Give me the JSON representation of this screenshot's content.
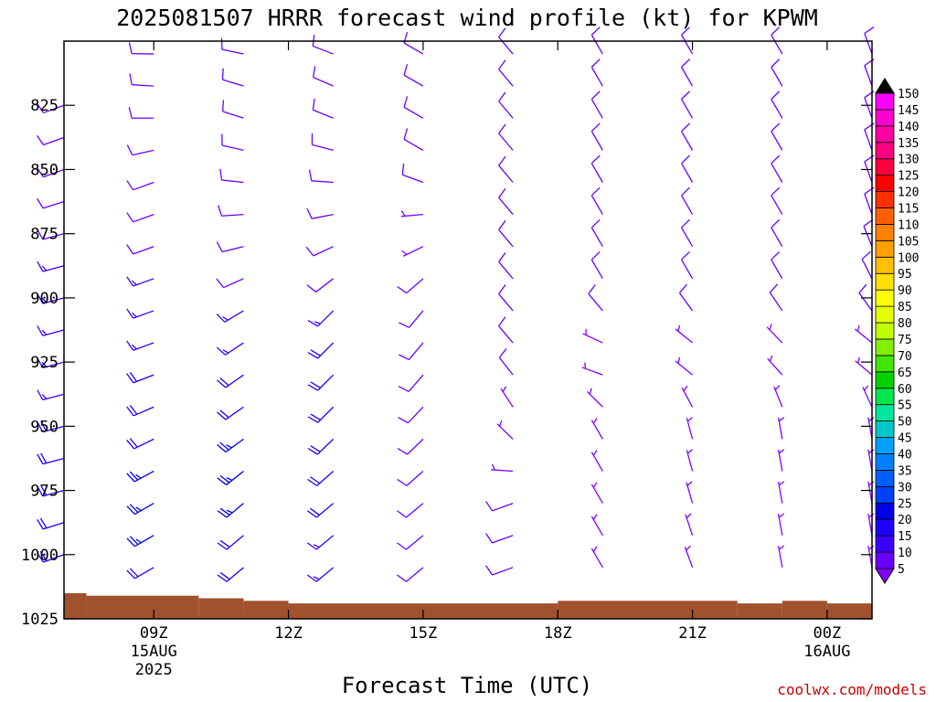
{
  "chart_data": {
    "type": "wind_barb_profile",
    "title": "2025081507 HRRR forecast wind profile (kt) for KPWM",
    "xlabel": "Forecast Time (UTC)",
    "credit": "coolwx.com/models",
    "y_axis": {
      "unit": "hPa",
      "range": [
        800,
        1025
      ],
      "ticks": [
        "825",
        "850",
        "875",
        "900",
        "925",
        "950",
        "975",
        "1000",
        "1025"
      ]
    },
    "x_axis": {
      "range": [
        "2025-08-15T07:00Z",
        "2025-08-16T01:00Z"
      ],
      "ticks": [
        {
          "label": "09Z",
          "sub1": "15AUG",
          "sub2": "2025",
          "time": "2025-08-15T09:00Z"
        },
        {
          "label": "12Z",
          "sub1": "",
          "sub2": "",
          "time": "2025-08-15T12:00Z"
        },
        {
          "label": "15Z",
          "sub1": "",
          "sub2": "",
          "time": "2025-08-15T15:00Z"
        },
        {
          "label": "18Z",
          "sub1": "",
          "sub2": "",
          "time": "2025-08-15T18:00Z"
        },
        {
          "label": "21Z",
          "sub1": "",
          "sub2": "",
          "time": "2025-08-15T21:00Z"
        },
        {
          "label": "00Z",
          "sub1": "16AUG",
          "sub2": "",
          "time": "2025-08-16T00:00Z"
        }
      ]
    },
    "colorbar": {
      "levels": [
        "5",
        "10",
        "15",
        "20",
        "25",
        "30",
        "35",
        "40",
        "45",
        "50",
        "55",
        "60",
        "65",
        "70",
        "75",
        "80",
        "85",
        "90",
        "95",
        "100",
        "105",
        "110",
        "115",
        "120",
        "125",
        "130",
        "135",
        "140",
        "145",
        "150"
      ],
      "colors": [
        "#8000ff",
        "#6a00ff",
        "#3c00ff",
        "#1e00ff",
        "#0000e6",
        "#0040ff",
        "#0060ff",
        "#0080ff",
        "#00a0ff",
        "#00c8c8",
        "#00e6a0",
        "#00e64c",
        "#00d200",
        "#40e600",
        "#80f000",
        "#c0ff00",
        "#e6ff00",
        "#ffff00",
        "#ffe000",
        "#ffc000",
        "#ffa000",
        "#ff8000",
        "#ff6000",
        "#ff3000",
        "#ff0000",
        "#ff0040",
        "#ff0080",
        "#ff00a0",
        "#ff00d0",
        "#ff00ff"
      ],
      "top_color": "#000000"
    },
    "terrain_color": "#a0522d",
    "surface_pressure_hpa": [
      {
        "time": "2025-08-15T07:00Z",
        "p": 1015
      },
      {
        "time": "2025-08-15T07:30Z",
        "p": 1016
      },
      {
        "time": "2025-08-15T10:00Z",
        "p": 1017
      },
      {
        "time": "2025-08-15T11:00Z",
        "p": 1018
      },
      {
        "time": "2025-08-15T12:00Z",
        "p": 1019
      },
      {
        "time": "2025-08-15T18:00Z",
        "p": 1018
      },
      {
        "time": "2025-08-15T22:00Z",
        "p": 1019
      },
      {
        "time": "2025-08-15T23:00Z",
        "p": 1018
      },
      {
        "time": "2025-08-16T00:00Z",
        "p": 1019
      }
    ],
    "series": [
      {
        "time": "2025-08-15T07:00Z",
        "profile": [
          {
            "p": 825,
            "dir": 250,
            "spd": 10
          },
          {
            "p": 850,
            "dir": 250,
            "spd": 12
          },
          {
            "p": 875,
            "dir": 255,
            "spd": 12
          },
          {
            "p": 900,
            "dir": 255,
            "spd": 14
          },
          {
            "p": 925,
            "dir": 255,
            "spd": 16
          },
          {
            "p": 950,
            "dir": 255,
            "spd": 18
          },
          {
            "p": 975,
            "dir": 255,
            "spd": 20
          },
          {
            "p": 1000,
            "dir": 250,
            "spd": 22
          }
        ]
      },
      {
        "time": "2025-08-15T09:00Z",
        "profile": [
          {
            "p": 800,
            "dir": 270,
            "spd": 8
          },
          {
            "p": 825,
            "dir": 275,
            "spd": 8
          },
          {
            "p": 850,
            "dir": 250,
            "spd": 10
          },
          {
            "p": 875,
            "dir": 250,
            "spd": 12
          },
          {
            "p": 900,
            "dir": 250,
            "spd": 14
          },
          {
            "p": 925,
            "dir": 250,
            "spd": 18
          },
          {
            "p": 950,
            "dir": 245,
            "spd": 22
          },
          {
            "p": 975,
            "dir": 240,
            "spd": 24
          },
          {
            "p": 1000,
            "dir": 240,
            "spd": 22
          }
        ]
      },
      {
        "time": "2025-08-15T11:00Z",
        "profile": [
          {
            "p": 800,
            "dir": 280,
            "spd": 8
          },
          {
            "p": 825,
            "dir": 290,
            "spd": 10
          },
          {
            "p": 850,
            "dir": 280,
            "spd": 10
          },
          {
            "p": 875,
            "dir": 260,
            "spd": 10
          },
          {
            "p": 900,
            "dir": 240,
            "spd": 12
          },
          {
            "p": 925,
            "dir": 235,
            "spd": 18
          },
          {
            "p": 950,
            "dir": 235,
            "spd": 24
          },
          {
            "p": 975,
            "dir": 230,
            "spd": 25
          },
          {
            "p": 1000,
            "dir": 230,
            "spd": 20
          }
        ]
      },
      {
        "time": "2025-08-15T13:00Z",
        "profile": [
          {
            "p": 800,
            "dir": 290,
            "spd": 10
          },
          {
            "p": 825,
            "dir": 295,
            "spd": 10
          },
          {
            "p": 850,
            "dir": 280,
            "spd": 8
          },
          {
            "p": 875,
            "dir": 250,
            "spd": 8
          },
          {
            "p": 900,
            "dir": 225,
            "spd": 12
          },
          {
            "p": 925,
            "dir": 225,
            "spd": 20
          },
          {
            "p": 950,
            "dir": 225,
            "spd": 22
          },
          {
            "p": 975,
            "dir": 230,
            "spd": 20
          },
          {
            "p": 1000,
            "dir": 230,
            "spd": 16
          }
        ]
      },
      {
        "time": "2025-08-15T15:00Z",
        "profile": [
          {
            "p": 800,
            "dir": 300,
            "spd": 10
          },
          {
            "p": 825,
            "dir": 300,
            "spd": 10
          },
          {
            "p": 850,
            "dir": 300,
            "spd": 10
          },
          {
            "p": 875,
            "dir": 250,
            "spd": 6
          },
          {
            "p": 900,
            "dir": 220,
            "spd": 10
          },
          {
            "p": 925,
            "dir": 220,
            "spd": 12
          },
          {
            "p": 950,
            "dir": 225,
            "spd": 12
          },
          {
            "p": 975,
            "dir": 230,
            "spd": 12
          },
          {
            "p": 1000,
            "dir": 230,
            "spd": 10
          }
        ]
      },
      {
        "time": "2025-08-15T17:00Z",
        "profile": [
          {
            "p": 800,
            "dir": 320,
            "spd": 8
          },
          {
            "p": 825,
            "dir": 320,
            "spd": 8
          },
          {
            "p": 850,
            "dir": 320,
            "spd": 8
          },
          {
            "p": 875,
            "dir": 320,
            "spd": 8
          },
          {
            "p": 900,
            "dir": 320,
            "spd": 8
          },
          {
            "p": 925,
            "dir": 320,
            "spd": 8
          },
          {
            "p": 950,
            "dir": 330,
            "spd": 6
          },
          {
            "p": 975,
            "dir": 250,
            "spd": 8
          },
          {
            "p": 1000,
            "dir": 250,
            "spd": 10
          }
        ]
      },
      {
        "time": "2025-08-15T19:00Z",
        "profile": [
          {
            "p": 800,
            "dir": 330,
            "spd": 10
          },
          {
            "p": 825,
            "dir": 330,
            "spd": 10
          },
          {
            "p": 850,
            "dir": 330,
            "spd": 10
          },
          {
            "p": 875,
            "dir": 330,
            "spd": 10
          },
          {
            "p": 900,
            "dir": 330,
            "spd": 10
          },
          {
            "p": 925,
            "dir": 280,
            "spd": 6
          },
          {
            "p": 950,
            "dir": 330,
            "spd": 6
          },
          {
            "p": 975,
            "dir": 330,
            "spd": 7
          },
          {
            "p": 1000,
            "dir": 330,
            "spd": 6
          }
        ]
      },
      {
        "time": "2025-08-15T21:00Z",
        "profile": [
          {
            "p": 800,
            "dir": 330,
            "spd": 10
          },
          {
            "p": 825,
            "dir": 330,
            "spd": 10
          },
          {
            "p": 850,
            "dir": 330,
            "spd": 10
          },
          {
            "p": 875,
            "dir": 330,
            "spd": 10
          },
          {
            "p": 900,
            "dir": 330,
            "spd": 10
          },
          {
            "p": 925,
            "dir": 300,
            "spd": 6
          },
          {
            "p": 950,
            "dir": 345,
            "spd": 6
          },
          {
            "p": 975,
            "dir": 345,
            "spd": 7
          },
          {
            "p": 1000,
            "dir": 340,
            "spd": 6
          }
        ]
      },
      {
        "time": "2025-08-15T23:00Z",
        "profile": [
          {
            "p": 800,
            "dir": 330,
            "spd": 10
          },
          {
            "p": 825,
            "dir": 330,
            "spd": 10
          },
          {
            "p": 850,
            "dir": 330,
            "spd": 10
          },
          {
            "p": 875,
            "dir": 330,
            "spd": 10
          },
          {
            "p": 900,
            "dir": 330,
            "spd": 10
          },
          {
            "p": 925,
            "dir": 310,
            "spd": 6
          },
          {
            "p": 950,
            "dir": 350,
            "spd": 6
          },
          {
            "p": 975,
            "dir": 350,
            "spd": 6
          },
          {
            "p": 1000,
            "dir": 350,
            "spd": 6
          }
        ]
      },
      {
        "time": "2025-08-16T01:00Z",
        "profile": [
          {
            "p": 800,
            "dir": 340,
            "spd": 8
          },
          {
            "p": 825,
            "dir": 340,
            "spd": 8
          },
          {
            "p": 850,
            "dir": 340,
            "spd": 8
          },
          {
            "p": 875,
            "dir": 340,
            "spd": 8
          },
          {
            "p": 900,
            "dir": 330,
            "spd": 8
          },
          {
            "p": 925,
            "dir": 300,
            "spd": 6
          },
          {
            "p": 950,
            "dir": 350,
            "spd": 6
          },
          {
            "p": 975,
            "dir": 350,
            "spd": 6
          },
          {
            "p": 1000,
            "dir": 350,
            "spd": 6
          }
        ]
      }
    ]
  }
}
